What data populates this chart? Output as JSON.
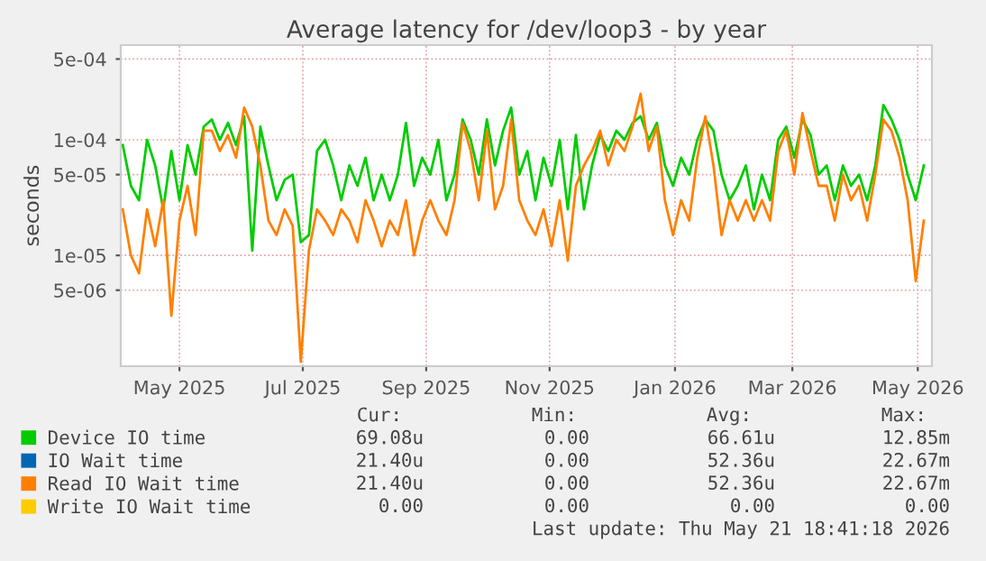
{
  "chart_data": {
    "type": "line",
    "title": "Average latency for /dev/loop3 - by year",
    "ylabel": "seconds",
    "log": "y",
    "grid": true,
    "legend": "bottom",
    "marker": "none",
    "line_style": "solid",
    "xlim": [
      "2025-04-17",
      "2026-05-23"
    ],
    "xticks": [
      {
        "value": "2025-05-16",
        "label": "May 2025"
      },
      {
        "value": "2025-07-16",
        "label": "Jul 2025"
      },
      {
        "value": "2025-09-15",
        "label": "Sep 2025"
      },
      {
        "value": "2025-11-15",
        "label": "Nov 2025"
      },
      {
        "value": "2026-01-16",
        "label": "Jan 2026"
      },
      {
        "value": "2026-03-15",
        "label": "Mar 2026"
      },
      {
        "value": "2026-05-16",
        "label": "May 2026"
      }
    ],
    "ylim": [
      1.1e-06,
      0.00066
    ],
    "yticks": [
      {
        "value": 5e-06,
        "label": "5e-06"
      },
      {
        "value": 1e-05,
        "label": "1e-05"
      },
      {
        "value": 5e-05,
        "label": "5e-05"
      },
      {
        "value": 0.0001,
        "label": "1e-04"
      },
      {
        "value": 0.0005,
        "label": "5e-04"
      }
    ],
    "x": [
      "2025-04-18",
      "2025-04-22",
      "2025-04-26",
      "2025-04-30",
      "2025-05-04",
      "2025-05-08",
      "2025-05-12",
      "2025-05-16",
      "2025-05-20",
      "2025-05-24",
      "2025-05-28",
      "2025-06-01",
      "2025-06-05",
      "2025-06-09",
      "2025-06-13",
      "2025-06-17",
      "2025-06-21",
      "2025-06-25",
      "2025-06-29",
      "2025-07-03",
      "2025-07-07",
      "2025-07-11",
      "2025-07-15",
      "2025-07-19",
      "2025-07-23",
      "2025-07-27",
      "2025-07-31",
      "2025-08-04",
      "2025-08-08",
      "2025-08-12",
      "2025-08-16",
      "2025-08-20",
      "2025-08-24",
      "2025-08-28",
      "2025-09-01",
      "2025-09-05",
      "2025-09-09",
      "2025-09-13",
      "2025-09-17",
      "2025-09-21",
      "2025-09-25",
      "2025-09-29",
      "2025-10-03",
      "2025-10-07",
      "2025-10-11",
      "2025-10-15",
      "2025-10-19",
      "2025-10-23",
      "2025-10-27",
      "2025-10-31",
      "2025-11-04",
      "2025-11-08",
      "2025-11-12",
      "2025-11-16",
      "2025-11-20",
      "2025-11-24",
      "2025-11-28",
      "2025-12-02",
      "2025-12-06",
      "2025-12-10",
      "2025-12-14",
      "2025-12-18",
      "2025-12-22",
      "2025-12-26",
      "2025-12-30",
      "2026-01-03",
      "2026-01-07",
      "2026-01-11",
      "2026-01-15",
      "2026-01-19",
      "2026-01-23",
      "2026-01-27",
      "2026-01-31",
      "2026-02-04",
      "2026-02-08",
      "2026-02-12",
      "2026-02-16",
      "2026-02-20",
      "2026-02-24",
      "2026-02-28",
      "2026-03-04",
      "2026-03-08",
      "2026-03-12",
      "2026-03-16",
      "2026-03-20",
      "2026-03-24",
      "2026-03-28",
      "2026-04-01",
      "2026-04-05",
      "2026-04-09",
      "2026-04-13",
      "2026-04-17",
      "2026-04-21",
      "2026-04-25",
      "2026-04-29",
      "2026-05-03",
      "2026-05-07",
      "2026-05-11",
      "2026-05-15",
      "2026-05-19"
    ],
    "series": [
      {
        "name": "Device IO time",
        "color": "#00cc00",
        "values": [
          9e-05,
          4e-05,
          3e-05,
          0.0001,
          6e-05,
          2.5e-05,
          8e-05,
          3e-05,
          9e-05,
          5e-05,
          0.00013,
          0.00015,
          0.0001,
          0.00014,
          9e-05,
          0.00016,
          1.1e-05,
          0.00013,
          6e-05,
          3e-05,
          4.5e-05,
          5e-05,
          1.3e-05,
          1.5e-05,
          8e-05,
          0.0001,
          6e-05,
          3e-05,
          6e-05,
          4e-05,
          7e-05,
          3e-05,
          5e-05,
          3e-05,
          5e-05,
          0.00014,
          4e-05,
          7e-05,
          5e-05,
          0.0001,
          3e-05,
          5e-05,
          0.00015,
          0.0001,
          5e-05,
          0.00015,
          6e-05,
          0.00012,
          0.00019,
          5e-05,
          8e-05,
          3e-05,
          7e-05,
          4e-05,
          0.0001,
          2.5e-05,
          0.00011,
          2.5e-05,
          6e-05,
          0.00011,
          8e-05,
          0.00012,
          0.0001,
          0.00014,
          0.00016,
          0.0001,
          0.00014,
          6e-05,
          4e-05,
          7e-05,
          5e-05,
          0.0001,
          0.00015,
          0.00012,
          5e-05,
          3e-05,
          4e-05,
          6e-05,
          2.5e-05,
          5e-05,
          3e-05,
          0.0001,
          0.00013,
          7e-05,
          0.00015,
          0.00011,
          5e-05,
          6e-05,
          3e-05,
          6e-05,
          4e-05,
          5e-05,
          3e-05,
          6e-05,
          0.0002,
          0.00015,
          0.0001,
          5e-05,
          3e-05,
          6e-05
        ]
      },
      {
        "name": "IO Wait time",
        "color": "#0066b3",
        "values": [
          null,
          null,
          null,
          null,
          null,
          null,
          null,
          null,
          null,
          null,
          null,
          null,
          null,
          null,
          null,
          null,
          null,
          null,
          null,
          null,
          null,
          null,
          null,
          null,
          null,
          null,
          null,
          null,
          null,
          null,
          null,
          null,
          null,
          null,
          null,
          null,
          null,
          null,
          null,
          null,
          null,
          null,
          null,
          null,
          null,
          null,
          null,
          null,
          null,
          null,
          null,
          null,
          null,
          null,
          null,
          null,
          null,
          null,
          null,
          null,
          null,
          null,
          null,
          null,
          null,
          null,
          null,
          null,
          null,
          null,
          null,
          null,
          null,
          null,
          null,
          null,
          null,
          null,
          null,
          null,
          null,
          null,
          null,
          null,
          null,
          null,
          null,
          null,
          null,
          null,
          null,
          null,
          null,
          null,
          null,
          null,
          null,
          null,
          null,
          null
        ]
      },
      {
        "name": "Read IO Wait time",
        "color": "#ff8000",
        "values": [
          2.5e-05,
          1e-05,
          7e-06,
          2.5e-05,
          1.2e-05,
          3e-05,
          3e-06,
          2e-05,
          4e-05,
          1.5e-05,
          0.00012,
          0.00012,
          8e-05,
          0.00011,
          7e-05,
          0.00019,
          0.00013,
          6e-05,
          2e-05,
          1.5e-05,
          2.5e-05,
          1.8e-05,
          1.2e-06,
          1.1e-05,
          2.5e-05,
          2e-05,
          1.5e-05,
          2.5e-05,
          2e-05,
          1.3e-05,
          3e-05,
          2e-05,
          1.2e-05,
          2e-05,
          1.5e-05,
          3e-05,
          1e-05,
          2e-05,
          3e-05,
          2e-05,
          1.5e-05,
          3e-05,
          0.00014,
          8e-05,
          3e-05,
          0.00012,
          2.5e-05,
          4e-05,
          0.00015,
          3e-05,
          2e-05,
          1.5e-05,
          2.5e-05,
          1.2e-05,
          3e-05,
          9e-06,
          4e-05,
          6e-05,
          8e-05,
          0.00012,
          6e-05,
          0.0001,
          8e-05,
          0.00013,
          0.00025,
          8e-05,
          0.00013,
          3e-05,
          1.5e-05,
          3e-05,
          2e-05,
          7e-05,
          0.00016,
          6e-05,
          1.5e-05,
          3e-05,
          2e-05,
          3e-05,
          2e-05,
          3e-05,
          2e-05,
          8e-05,
          0.00012,
          5e-05,
          0.00017,
          8e-05,
          4e-05,
          4e-05,
          2e-05,
          5e-05,
          3e-05,
          4e-05,
          2e-05,
          5e-05,
          0.00015,
          0.00012,
          7e-05,
          3e-05,
          6e-06,
          2e-05
        ]
      },
      {
        "name": "Write IO Wait time",
        "color": "#ffcc00",
        "values": [
          null,
          null,
          null,
          null,
          null,
          null,
          null,
          null,
          null,
          null,
          null,
          null,
          null,
          null,
          null,
          null,
          null,
          null,
          null,
          null,
          null,
          null,
          null,
          null,
          null,
          null,
          null,
          null,
          null,
          null,
          null,
          null,
          null,
          null,
          null,
          null,
          null,
          null,
          null,
          null,
          null,
          null,
          null,
          null,
          null,
          null,
          null,
          null,
          null,
          null,
          null,
          null,
          null,
          null,
          null,
          null,
          null,
          null,
          null,
          null,
          null,
          null,
          null,
          null,
          null,
          null,
          null,
          null,
          null,
          null,
          null,
          null,
          null,
          null,
          null,
          null,
          null,
          null,
          null,
          null,
          null,
          null,
          null,
          null,
          null,
          null,
          null,
          null,
          null,
          null,
          null,
          null,
          null,
          null,
          null,
          null,
          null,
          null,
          null,
          null
        ]
      }
    ],
    "annotations": [
      "Cur:",
      "Min:",
      "Avg:",
      "Max:",
      "69.08u",
      "0.00",
      "66.61u",
      "12.85m",
      "21.40u",
      "0.00",
      "52.36u",
      "22.67m",
      "21.40u",
      "0.00",
      "52.36u",
      "22.67m",
      "0.00",
      "0.00",
      "0.00",
      "0.00",
      "Last update: Thu May 21 18:41:18 2026"
    ]
  }
}
